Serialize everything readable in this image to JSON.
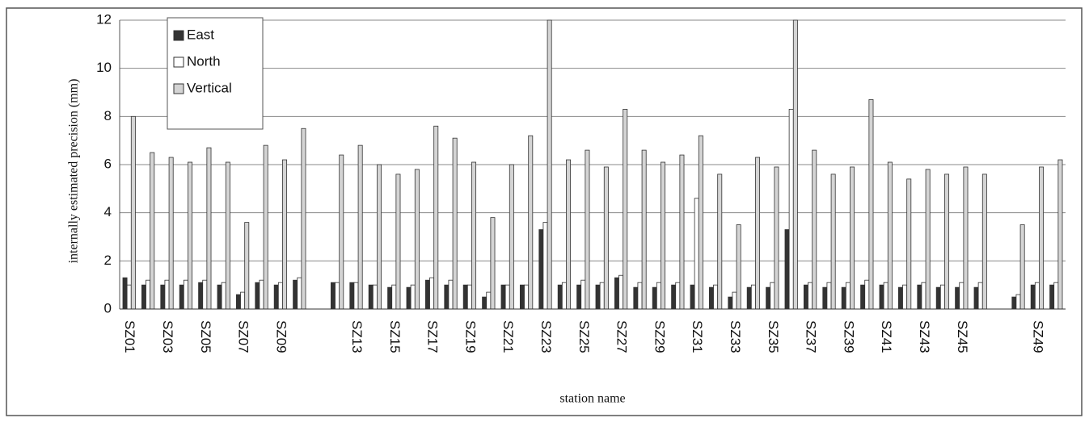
{
  "chart_data": {
    "type": "bar",
    "y_label": "internally estimated precision (mm)",
    "x_label": "station name",
    "categories": [
      "SZ01",
      null,
      "SZ03",
      null,
      "SZ05",
      null,
      "SZ07",
      null,
      "SZ09",
      null,
      null,
      null,
      "SZ13",
      null,
      "SZ15",
      null,
      "SZ17",
      null,
      "SZ19",
      null,
      "SZ21",
      null,
      "SZ23",
      null,
      "SZ25",
      null,
      "SZ27",
      null,
      "SZ29",
      null,
      "SZ31",
      null,
      "SZ33",
      null,
      "SZ35",
      null,
      "SZ37",
      null,
      "SZ39",
      null,
      "SZ41",
      null,
      "SZ43",
      null,
      "SZ45",
      null,
      null,
      null,
      "SZ49",
      null
    ],
    "series": [
      {
        "name": "East",
        "color": "#333333",
        "values": [
          1.3,
          1.0,
          1.0,
          1.0,
          1.1,
          1.0,
          0.6,
          1.1,
          1.0,
          1.2,
          null,
          1.1,
          1.1,
          1.0,
          0.9,
          0.9,
          1.2,
          1.0,
          1.0,
          0.5,
          1.0,
          1.0,
          3.3,
          1.0,
          1.0,
          1.0,
          1.3,
          0.9,
          0.9,
          1.0,
          1.0,
          0.9,
          0.5,
          0.9,
          0.9,
          3.3,
          1.0,
          0.9,
          0.9,
          1.0,
          1.0,
          0.9,
          1.0,
          0.9,
          0.9,
          0.9,
          null,
          0.5,
          1.0,
          1.0
        ]
      },
      {
        "name": "North",
        "color": "#ffffff",
        "values": [
          1.0,
          1.2,
          1.2,
          1.2,
          1.2,
          1.1,
          0.7,
          1.2,
          1.1,
          1.3,
          null,
          1.1,
          1.1,
          1.0,
          1.0,
          1.0,
          1.3,
          1.2,
          1.0,
          0.7,
          1.0,
          1.0,
          3.6,
          1.1,
          1.2,
          1.1,
          1.4,
          1.1,
          1.1,
          1.1,
          4.6,
          1.0,
          0.7,
          1.0,
          1.1,
          8.3,
          1.1,
          1.1,
          1.1,
          1.2,
          1.1,
          1.0,
          1.1,
          1.0,
          1.1,
          1.1,
          null,
          0.6,
          1.1,
          1.1
        ]
      },
      {
        "name": "Vertical",
        "color": "#d4d4d4",
        "values": [
          8.0,
          6.5,
          6.3,
          6.1,
          6.7,
          6.1,
          3.6,
          6.8,
          6.2,
          7.5,
          null,
          6.4,
          6.8,
          6.0,
          5.6,
          5.8,
          7.6,
          7.1,
          6.1,
          3.8,
          6.0,
          7.2,
          12.0,
          6.2,
          6.6,
          5.9,
          8.3,
          6.6,
          6.1,
          6.4,
          7.2,
          5.6,
          3.5,
          6.3,
          5.9,
          12.0,
          6.6,
          5.6,
          5.9,
          8.7,
          6.1,
          5.4,
          5.8,
          5.6,
          5.9,
          5.6,
          null,
          3.5,
          5.9,
          6.2
        ]
      }
    ],
    "ylim": [
      0,
      12
    ],
    "yticks": [
      0,
      2,
      4,
      6,
      8,
      10,
      12
    ],
    "grid": true,
    "legend": "top-left"
  }
}
